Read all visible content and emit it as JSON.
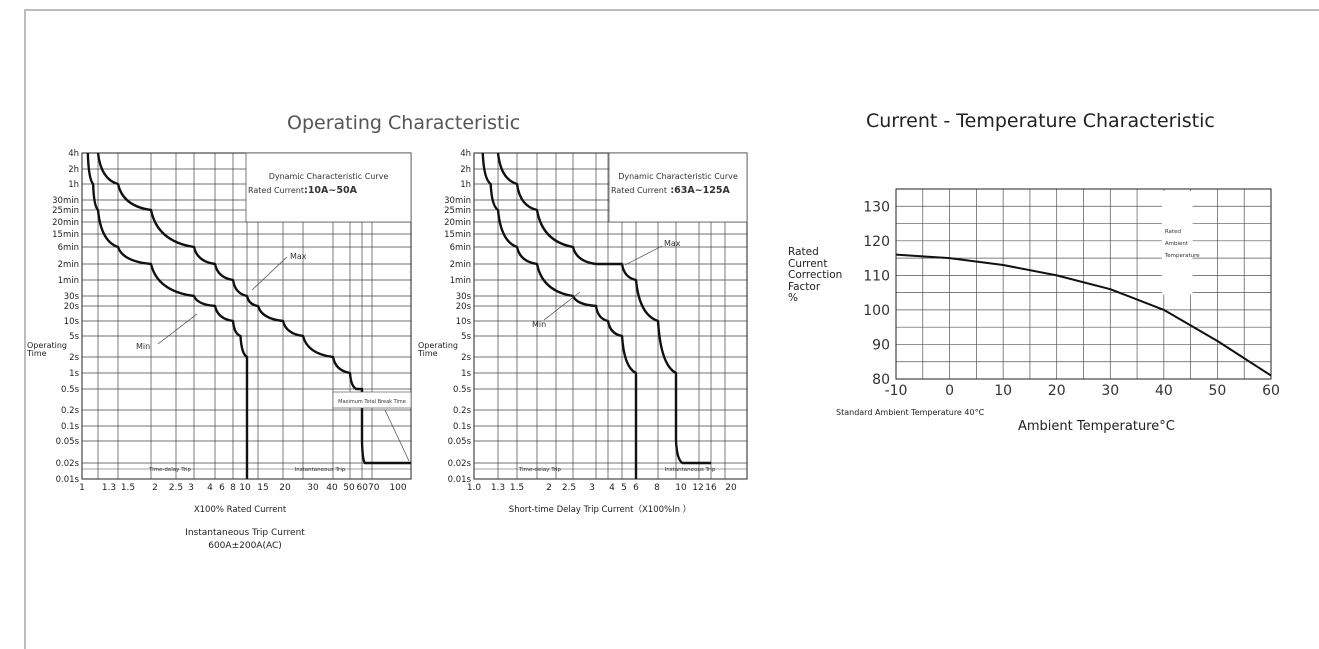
{
  "titles": {
    "left": "Operating Characteristic",
    "right": "Current - Temperature Characteristic"
  },
  "chart_data": [
    {
      "type": "line",
      "panel": "trip-curve-10-50A",
      "ylabel": "Operating Time",
      "xlabel": "X100%  Rated Current",
      "x_ticks": [
        "1",
        "1.3",
        "1.5",
        "2",
        "2.5",
        "3",
        "4",
        "6",
        "8",
        "10",
        "15",
        "20",
        "30",
        "40",
        "50",
        "6070",
        "100"
      ],
      "y_ticks": [
        "4h",
        "2h",
        "1h",
        "30min",
        "25min",
        "20min",
        "15min",
        "6min",
        "2min",
        "1min",
        "30s",
        "20s",
        "10s",
        "5s",
        "2s",
        "1s",
        "0.5s",
        "0.2s",
        "0.1s",
        "0.05s",
        "0.02s",
        "0.01s"
      ],
      "legend_box": {
        "line1": "Dynamic Characteristic Curve",
        "line2_prefix": "Rated Current",
        "line2_value": ":10A~50A"
      },
      "annotations": {
        "max": "Max",
        "min": "Min",
        "break_time": "Maximum Total Break Time",
        "time_delay": "Time-delay Trip",
        "instantaneous": "Instantaneous Trip"
      },
      "series": [
        {
          "name": "Max",
          "x": [
            1.3,
            1.5,
            2,
            3,
            4,
            6,
            8,
            10,
            15,
            20,
            30,
            40,
            45,
            50,
            50,
            55,
            70,
            100
          ],
          "y": [
            "4h",
            "1h",
            "25min",
            "6min",
            "2min",
            "1min",
            "30s",
            "20s",
            "10s",
            "5s",
            "2s",
            "1s",
            "0.5s",
            "0.5s",
            "0.05s",
            "0.02s",
            "0.02s",
            "0.02s"
          ]
        },
        {
          "name": "Min",
          "x": [
            1.1,
            1.2,
            1.3,
            1.5,
            2,
            3,
            4,
            6,
            7,
            8,
            8,
            8
          ],
          "y": [
            "4h",
            "1h",
            "25min",
            "6min",
            "2min",
            "30s",
            "20s",
            "10s",
            "5s",
            "2s",
            "0.05s",
            "0.01s"
          ]
        }
      ]
    },
    {
      "type": "line",
      "panel": "trip-curve-63-125A",
      "ylabel": "Operating Time",
      "xlabel": "Short-time Delay Trip Current（X100%In ）",
      "x_ticks": [
        "1.0",
        "1.3",
        "1.5",
        "2",
        "2.5",
        "3",
        "4",
        "5",
        "6",
        "8",
        "10",
        "12",
        "16",
        "20"
      ],
      "y_ticks": [
        "4h",
        "2h",
        "1h",
        "30min",
        "25min",
        "20min",
        "15min",
        "6min",
        "2min",
        "1min",
        "30s",
        "20s",
        "10s",
        "5s",
        "2s",
        "1s",
        "0.5s",
        "0.2s",
        "0.1s",
        "0.05s",
        "0.02s",
        "0.01s"
      ],
      "legend_box": {
        "line1": "Dynamic Characteristic Curve",
        "line2_prefix": "Rated Current",
        "line2_value": " :63A~125A"
      },
      "annotations": {
        "max": "Max",
        "min": "Min",
        "time_delay": "Time-delay Trip",
        "instantaneous": "Instantaneous Trip"
      },
      "series": [
        {
          "name": "Max",
          "x": [
            1.3,
            1.5,
            2,
            3,
            4,
            6,
            8,
            10,
            12,
            12,
            13,
            16,
            20
          ],
          "y": [
            "4h",
            "1h",
            "25min",
            "6min",
            "2min",
            "2min",
            "1min",
            "10s",
            "1s",
            "0.05s",
            "0.02s",
            "0.02s",
            "0.02s"
          ]
        },
        {
          "name": "Min",
          "x": [
            1.1,
            1.2,
            1.3,
            1.5,
            2,
            3,
            4,
            5,
            6,
            8,
            8
          ],
          "y": [
            "4h",
            "1h",
            "25min",
            "6min",
            "2min",
            "30s",
            "20s",
            "10s",
            "5s",
            "1s",
            "0.01s"
          ]
        }
      ]
    },
    {
      "type": "line",
      "panel": "current-temperature",
      "xlabel": "Ambient Temperature°C",
      "ylabel_lines": [
        "Rated",
        "Current",
        "Correction",
        "Factor",
        "%"
      ],
      "xlim": [
        -10,
        60
      ],
      "ylim": [
        80,
        135
      ],
      "x_ticks": [
        "-10",
        "0",
        "10",
        "20",
        "30",
        "40",
        "50",
        "60"
      ],
      "y_ticks": [
        "130",
        "120",
        "110",
        "100",
        "90",
        "80"
      ],
      "rated_label": [
        "Rated",
        "Ambient",
        "Temperature"
      ],
      "series": [
        {
          "x": [
            -10,
            0,
            10,
            20,
            30,
            40,
            50,
            60
          ],
          "y": [
            116,
            115,
            113,
            110,
            106,
            100,
            91,
            81
          ]
        }
      ]
    }
  ],
  "notes": {
    "instantaneous_title": "Instantaneous Trip Current",
    "instantaneous_value": "600A±200A(AC)",
    "standard_ambient": "Standard Ambient Temperature 40°C"
  }
}
